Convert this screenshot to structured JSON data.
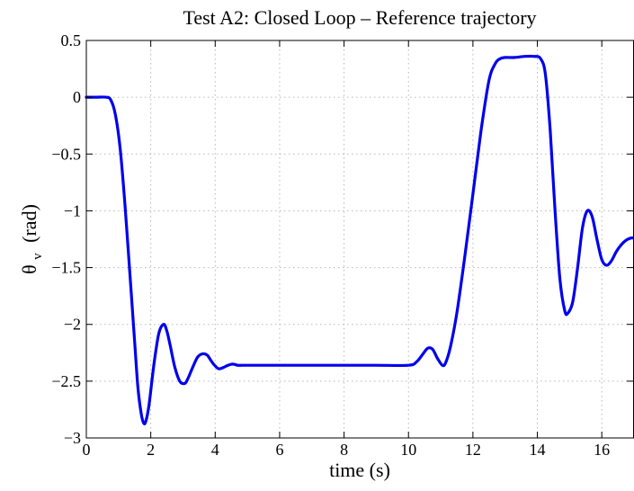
{
  "chart_data": {
    "type": "line",
    "title": "Test A2: Closed Loop – Reference trajectory",
    "xlabel": "time (s)",
    "ylabel_symbol": "θ",
    "ylabel_subscript": "v",
    "ylabel_unit": "(rad)",
    "xlim": [
      0,
      17
    ],
    "ylim": [
      -3,
      0.5
    ],
    "xticks": [
      0,
      2,
      4,
      6,
      8,
      10,
      12,
      14,
      16
    ],
    "yticks": [
      0.5,
      0,
      -0.5,
      -1,
      -1.5,
      -2,
      -2.5,
      -3
    ],
    "ytick_labels": [
      "0.5",
      "0",
      "−0.5",
      "−1",
      "−1.5",
      "−2",
      "−2.5",
      "−3"
    ],
    "grid": true,
    "series": [
      {
        "color": "#0000ee",
        "x": [
          0,
          0.3,
          0.6,
          0.75,
          0.9,
          1.05,
          1.2,
          1.35,
          1.5,
          1.6,
          1.7,
          1.78,
          1.85,
          1.95,
          2.1,
          2.25,
          2.4,
          2.5,
          2.6,
          2.75,
          2.9,
          3.05,
          3.15,
          3.3,
          3.45,
          3.6,
          3.75,
          3.85,
          3.95,
          4.1,
          4.25,
          4.4,
          4.55,
          4.7,
          4.85,
          5.0,
          6.0,
          7.0,
          8.0,
          9.0,
          10.0,
          10.25,
          10.45,
          10.6,
          10.75,
          10.9,
          11.05,
          11.15,
          11.3,
          11.5,
          11.75,
          12.0,
          12.25,
          12.5,
          12.7,
          12.85,
          13.0,
          13.3,
          13.6,
          13.9,
          14.1,
          14.25,
          14.4,
          14.55,
          14.7,
          14.85,
          14.95,
          15.1,
          15.25,
          15.4,
          15.55,
          15.7,
          15.85,
          16.0,
          16.15,
          16.3,
          16.45,
          16.6,
          16.75,
          16.9,
          17.0
        ],
        "y": [
          0,
          0,
          0,
          -0.02,
          -0.15,
          -0.45,
          -0.95,
          -1.55,
          -2.15,
          -2.55,
          -2.78,
          -2.87,
          -2.85,
          -2.7,
          -2.35,
          -2.08,
          -2.0,
          -2.06,
          -2.18,
          -2.38,
          -2.5,
          -2.52,
          -2.48,
          -2.38,
          -2.29,
          -2.26,
          -2.27,
          -2.31,
          -2.35,
          -2.39,
          -2.38,
          -2.36,
          -2.35,
          -2.36,
          -2.36,
          -2.36,
          -2.36,
          -2.36,
          -2.36,
          -2.36,
          -2.36,
          -2.33,
          -2.26,
          -2.21,
          -2.22,
          -2.3,
          -2.36,
          -2.34,
          -2.2,
          -1.9,
          -1.4,
          -0.85,
          -0.3,
          0.15,
          0.3,
          0.34,
          0.35,
          0.35,
          0.36,
          0.36,
          0.34,
          0.2,
          -0.3,
          -1.0,
          -1.6,
          -1.88,
          -1.9,
          -1.8,
          -1.5,
          -1.15,
          -1.0,
          -1.05,
          -1.25,
          -1.43,
          -1.48,
          -1.44,
          -1.36,
          -1.3,
          -1.26,
          -1.24,
          -1.24
        ]
      }
    ]
  }
}
